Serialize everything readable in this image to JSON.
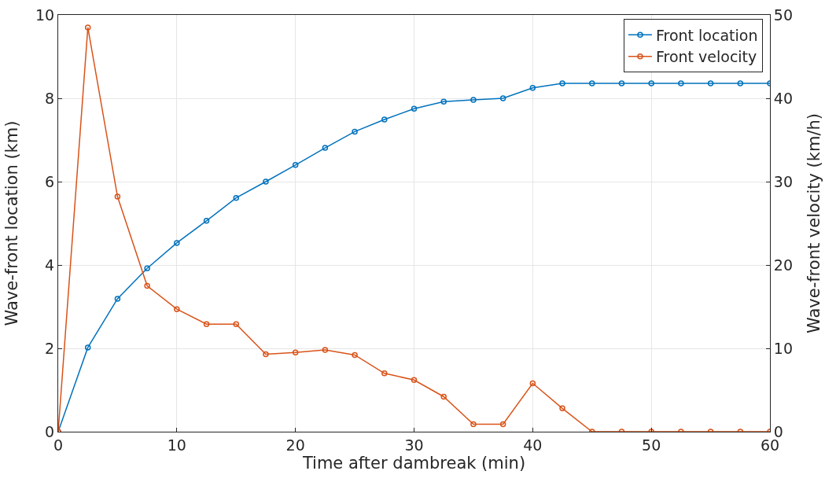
{
  "chart_data": {
    "type": "line",
    "xlabel": "Time after dambreak (min)",
    "ylabel": "Wave-front location (km)",
    "y2label": "Wave-front velocity (km/h)",
    "x": [
      0,
      2.5,
      5,
      7.5,
      10,
      12.5,
      15,
      17.5,
      20,
      22.5,
      25,
      27.5,
      30,
      32.5,
      35,
      37.5,
      40,
      42.5,
      45,
      47.5,
      50,
      52.5,
      55,
      57.5,
      60
    ],
    "series": [
      {
        "name": "Front location",
        "color": "#0072bd",
        "values": [
          0,
          2.02,
          3.19,
          3.92,
          4.53,
          5.06,
          5.61,
          6.0,
          6.4,
          6.81,
          7.2,
          7.49,
          7.75,
          7.92,
          7.96,
          8.0,
          8.25,
          8.36,
          8.36,
          8.36,
          8.36,
          8.36,
          8.36,
          8.36,
          8.36
        ]
      },
      {
        "name": "Front velocity",
        "color": "#d95319",
        "axis": "y2",
        "values": [
          0,
          48.5,
          28.2,
          17.5,
          14.7,
          12.9,
          12.9,
          9.3,
          9.5,
          9.8,
          9.2,
          7.0,
          6.2,
          4.2,
          0.9,
          0.9,
          5.8,
          2.8,
          0,
          0,
          0,
          0,
          0,
          0,
          0
        ]
      }
    ],
    "xlim": [
      0,
      60
    ],
    "xticks": [
      0,
      10,
      20,
      30,
      40,
      50,
      60
    ],
    "ylim": [
      0,
      10
    ],
    "yticks": [
      0,
      2,
      4,
      6,
      8,
      10
    ],
    "y2lim": [
      0,
      50
    ],
    "y2ticks": [
      0,
      10,
      20,
      30,
      40,
      50
    ],
    "grid": true,
    "legend": "top right",
    "marker": "circle",
    "line_style": "solid"
  }
}
